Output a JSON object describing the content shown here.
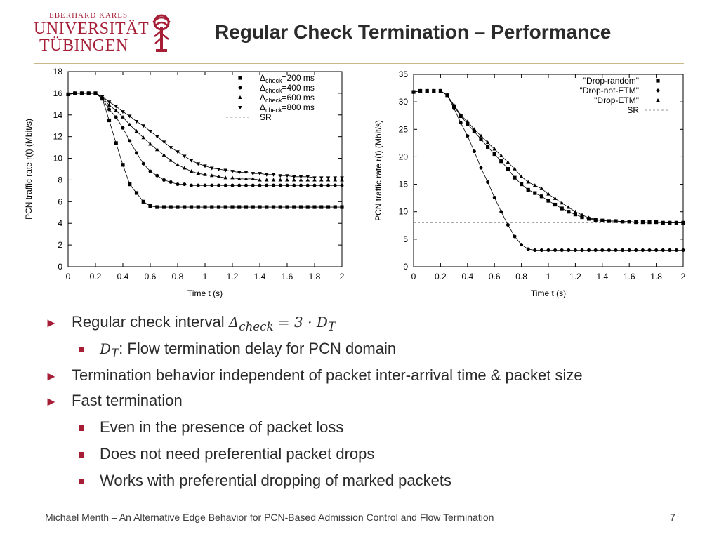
{
  "logo": {
    "line1": "EBERHARD KARLS",
    "line2": "UNIVERSITÄT",
    "line3": "TÜBINGEN",
    "color": "#a51e36"
  },
  "title": "Regular Check Termination – Performance",
  "chart_data": [
    {
      "type": "line",
      "title": "",
      "xlabel": "Time t (s)",
      "ylabel": "PCN traffic rate r(t) (Mbit/s)",
      "xlim": [
        0,
        2
      ],
      "ylim": [
        0,
        18
      ],
      "xticks": [
        0,
        0.2,
        0.4,
        0.6,
        0.8,
        1,
        1.2,
        1.4,
        1.6,
        1.8,
        2
      ],
      "yticks": [
        0,
        2,
        4,
        6,
        8,
        10,
        12,
        14,
        16,
        18
      ],
      "legend_position": "top-right",
      "legend": [
        {
          "prefix": "Δ",
          "sub": "check",
          "suffix": "=200 ms",
          "marker": "square"
        },
        {
          "prefix": "Δ",
          "sub": "check",
          "suffix": "=400 ms",
          "marker": "circle"
        },
        {
          "prefix": "Δ",
          "sub": "check",
          "suffix": "=600 ms",
          "marker": "triangle-up"
        },
        {
          "prefix": "Δ",
          "sub": "check",
          "suffix": "=800 ms",
          "marker": "triangle-down"
        },
        {
          "prefix": "SR",
          "sub": "",
          "suffix": "",
          "marker": "dashed"
        }
      ],
      "reference_line": {
        "label": "SR",
        "y": 8
      },
      "series": [
        {
          "marker": "square",
          "x": [
            0.0,
            0.05,
            0.1,
            0.15,
            0.2,
            0.25,
            0.3,
            0.35,
            0.4,
            0.45,
            0.5,
            0.55,
            0.6,
            0.65,
            0.7,
            0.75,
            0.8,
            0.85,
            0.9,
            0.95,
            1.0,
            1.05,
            1.1,
            1.15,
            1.2,
            1.25,
            1.3,
            1.35,
            1.4,
            1.45,
            1.5,
            1.55,
            1.6,
            1.65,
            1.7,
            1.75,
            1.8,
            1.85,
            1.9,
            1.95,
            2.0
          ],
          "y": [
            15.9,
            16.0,
            16.0,
            16.0,
            16.0,
            15.5,
            13.5,
            11.4,
            9.4,
            7.6,
            6.8,
            6.0,
            5.6,
            5.5,
            5.5,
            5.5,
            5.5,
            5.5,
            5.5,
            5.5,
            5.5,
            5.5,
            5.5,
            5.5,
            5.5,
            5.5,
            5.5,
            5.5,
            5.5,
            5.5,
            5.5,
            5.5,
            5.5,
            5.5,
            5.5,
            5.5,
            5.5,
            5.5,
            5.5,
            5.5,
            5.5
          ]
        },
        {
          "marker": "circle",
          "x": [
            0.0,
            0.05,
            0.1,
            0.15,
            0.2,
            0.25,
            0.3,
            0.35,
            0.4,
            0.45,
            0.5,
            0.55,
            0.6,
            0.65,
            0.7,
            0.75,
            0.8,
            0.85,
            0.9,
            0.95,
            1.0,
            1.05,
            1.1,
            1.15,
            1.2,
            1.25,
            1.3,
            1.35,
            1.4,
            1.45,
            1.5,
            1.55,
            1.6,
            1.65,
            1.7,
            1.75,
            1.8,
            1.85,
            1.9,
            1.95,
            2.0
          ],
          "y": [
            15.9,
            16.0,
            16.0,
            16.0,
            16.0,
            15.5,
            14.5,
            13.8,
            12.8,
            11.6,
            10.5,
            9.5,
            8.8,
            8.4,
            8.0,
            7.8,
            7.6,
            7.6,
            7.5,
            7.5,
            7.5,
            7.5,
            7.5,
            7.5,
            7.5,
            7.5,
            7.5,
            7.5,
            7.5,
            7.5,
            7.5,
            7.5,
            7.5,
            7.5,
            7.5,
            7.5,
            7.5,
            7.5,
            7.5,
            7.5,
            7.5
          ]
        },
        {
          "marker": "triangle-up",
          "x": [
            0.0,
            0.05,
            0.1,
            0.15,
            0.2,
            0.25,
            0.3,
            0.35,
            0.4,
            0.45,
            0.5,
            0.55,
            0.6,
            0.65,
            0.7,
            0.75,
            0.8,
            0.85,
            0.9,
            0.95,
            1.0,
            1.05,
            1.1,
            1.15,
            1.2,
            1.25,
            1.3,
            1.35,
            1.4,
            1.45,
            1.5,
            1.55,
            1.6,
            1.65,
            1.7,
            1.75,
            1.8,
            1.85,
            1.9,
            1.95,
            2.0
          ],
          "y": [
            15.9,
            16.0,
            16.0,
            16.0,
            16.0,
            15.6,
            14.9,
            14.4,
            13.8,
            13.1,
            12.5,
            11.9,
            11.3,
            10.8,
            10.3,
            9.8,
            9.4,
            9.1,
            8.8,
            8.6,
            8.5,
            8.4,
            8.3,
            8.2,
            8.2,
            8.1,
            8.1,
            8.1,
            8.0,
            8.0,
            8.0,
            8.0,
            8.0,
            8.0,
            8.0,
            8.0,
            8.0,
            8.0,
            8.0,
            8.0,
            8.0
          ]
        },
        {
          "marker": "triangle-down",
          "x": [
            0.0,
            0.05,
            0.1,
            0.15,
            0.2,
            0.25,
            0.3,
            0.35,
            0.4,
            0.45,
            0.5,
            0.55,
            0.6,
            0.65,
            0.7,
            0.75,
            0.8,
            0.85,
            0.9,
            0.95,
            1.0,
            1.05,
            1.1,
            1.15,
            1.2,
            1.25,
            1.3,
            1.35,
            1.4,
            1.45,
            1.5,
            1.55,
            1.6,
            1.65,
            1.7,
            1.75,
            1.8,
            1.85,
            1.9,
            1.95,
            2.0
          ],
          "y": [
            15.9,
            16.0,
            16.0,
            16.0,
            16.0,
            15.7,
            15.2,
            14.8,
            14.3,
            13.9,
            13.4,
            13.0,
            12.5,
            12.0,
            11.5,
            11.0,
            10.6,
            10.2,
            9.8,
            9.5,
            9.3,
            9.1,
            9.0,
            8.9,
            8.8,
            8.7,
            8.7,
            8.6,
            8.6,
            8.5,
            8.5,
            8.4,
            8.4,
            8.3,
            8.3,
            8.3,
            8.2,
            8.2,
            8.2,
            8.2,
            8.2
          ]
        }
      ]
    },
    {
      "type": "line",
      "title": "",
      "xlabel": "Time t (s)",
      "ylabel": "PCN traffic rate r(t) (Mbit/s)",
      "xlim": [
        0,
        2
      ],
      "ylim": [
        0,
        35
      ],
      "xticks": [
        0,
        0.2,
        0.4,
        0.6,
        0.8,
        1,
        1.2,
        1.4,
        1.6,
        1.8,
        2
      ],
      "yticks": [
        0,
        5,
        10,
        15,
        20,
        25,
        30,
        35
      ],
      "legend_position": "top-right",
      "legend": [
        {
          "label": "\"Drop-random\"",
          "marker": "square"
        },
        {
          "label": "\"Drop-not-ETM\"",
          "marker": "circle"
        },
        {
          "label": "\"Drop-ETM\"",
          "marker": "triangle-up"
        },
        {
          "label": "SR",
          "marker": "dashed"
        }
      ],
      "reference_line": {
        "label": "SR",
        "y": 8
      },
      "series": [
        {
          "marker": "square",
          "x": [
            0.0,
            0.05,
            0.1,
            0.15,
            0.2,
            0.25,
            0.3,
            0.35,
            0.4,
            0.45,
            0.5,
            0.55,
            0.6,
            0.65,
            0.7,
            0.75,
            0.8,
            0.85,
            0.9,
            0.95,
            1.0,
            1.05,
            1.1,
            1.15,
            1.2,
            1.25,
            1.3,
            1.35,
            1.4,
            1.45,
            1.5,
            1.55,
            1.6,
            1.65,
            1.7,
            1.75,
            1.8,
            1.85,
            1.9,
            1.95,
            2.0
          ],
          "y": [
            31.8,
            32.0,
            32.0,
            32.0,
            32.0,
            31.2,
            29.2,
            27.4,
            26.0,
            24.6,
            23.2,
            21.8,
            20.5,
            19.2,
            17.8,
            16.2,
            15.0,
            14.0,
            13.4,
            12.8,
            12.0,
            11.3,
            10.6,
            10.0,
            9.5,
            9.0,
            8.7,
            8.5,
            8.4,
            8.3,
            8.3,
            8.2,
            8.2,
            8.1,
            8.1,
            8.1,
            8.1,
            8.0,
            8.0,
            8.0,
            8.0
          ]
        },
        {
          "marker": "circle",
          "x": [
            0.0,
            0.05,
            0.1,
            0.15,
            0.2,
            0.25,
            0.3,
            0.35,
            0.4,
            0.45,
            0.5,
            0.55,
            0.6,
            0.65,
            0.7,
            0.75,
            0.8,
            0.85,
            0.9,
            0.95,
            1.0,
            1.05,
            1.1,
            1.15,
            1.2,
            1.25,
            1.3,
            1.35,
            1.4,
            1.45,
            1.5,
            1.55,
            1.6,
            1.65,
            1.7,
            1.75,
            1.8,
            1.85,
            1.9,
            1.95,
            2.0
          ],
          "y": [
            31.8,
            32.0,
            32.0,
            32.0,
            32.0,
            31.2,
            28.8,
            26.2,
            23.8,
            21.0,
            18.0,
            15.4,
            12.6,
            10.0,
            7.6,
            5.5,
            4.0,
            3.2,
            3.0,
            3.0,
            3.0,
            3.0,
            3.0,
            3.0,
            3.0,
            3.0,
            3.0,
            3.0,
            3.0,
            3.0,
            3.0,
            3.0,
            3.0,
            3.0,
            3.0,
            3.0,
            3.0,
            3.0,
            3.0,
            3.0,
            3.0
          ]
        },
        {
          "marker": "triangle-up",
          "x": [
            0.0,
            0.05,
            0.1,
            0.15,
            0.2,
            0.25,
            0.3,
            0.35,
            0.4,
            0.45,
            0.5,
            0.55,
            0.6,
            0.65,
            0.7,
            0.75,
            0.8,
            0.85,
            0.9,
            0.95,
            1.0,
            1.05,
            1.1,
            1.15,
            1.2,
            1.25,
            1.3,
            1.35,
            1.4,
            1.45,
            1.5,
            1.55,
            1.6,
            1.65,
            1.7,
            1.75,
            1.8,
            1.85,
            1.9,
            1.95,
            2.0
          ],
          "y": [
            31.8,
            32.0,
            32.0,
            32.0,
            32.0,
            31.2,
            29.4,
            27.6,
            26.4,
            25.0,
            23.8,
            22.6,
            21.4,
            20.2,
            19.0,
            17.8,
            16.4,
            15.4,
            14.8,
            14.2,
            13.2,
            12.4,
            11.6,
            10.8,
            10.0,
            9.4,
            8.9,
            8.6,
            8.4,
            8.3,
            8.3,
            8.2,
            8.2,
            8.1,
            8.1,
            8.1,
            8.1,
            8.0,
            8.0,
            8.0,
            8.0
          ]
        }
      ]
    }
  ],
  "bullets": [
    {
      "level": 1,
      "text": "Regular check interval ",
      "math": {
        "a": "Δ",
        "sub": "check",
        "b": " = 3 · D",
        "sub2": "T"
      }
    },
    {
      "level": 2,
      "math": {
        "a": "D",
        "sub": "T"
      },
      "text": ": Flow termination delay for PCN domain"
    },
    {
      "level": 1,
      "text": "Termination behavior independent of packet inter-arrival time & packet size"
    },
    {
      "level": 1,
      "text": "Fast termination"
    },
    {
      "level": 2,
      "text": "Even in the presence of packet loss"
    },
    {
      "level": 2,
      "text": "Does not need preferential packet drops"
    },
    {
      "level": 2,
      "text": "Works with preferential dropping of marked packets"
    }
  ],
  "bullet_marker_l1": "►",
  "footer": "Michael Menth – An Alternative Edge Behavior for PCN-Based Admission Control and Flow Termination",
  "page_number": "7",
  "colors": {
    "accent": "#a51e36",
    "rule": "#c8b88a"
  }
}
